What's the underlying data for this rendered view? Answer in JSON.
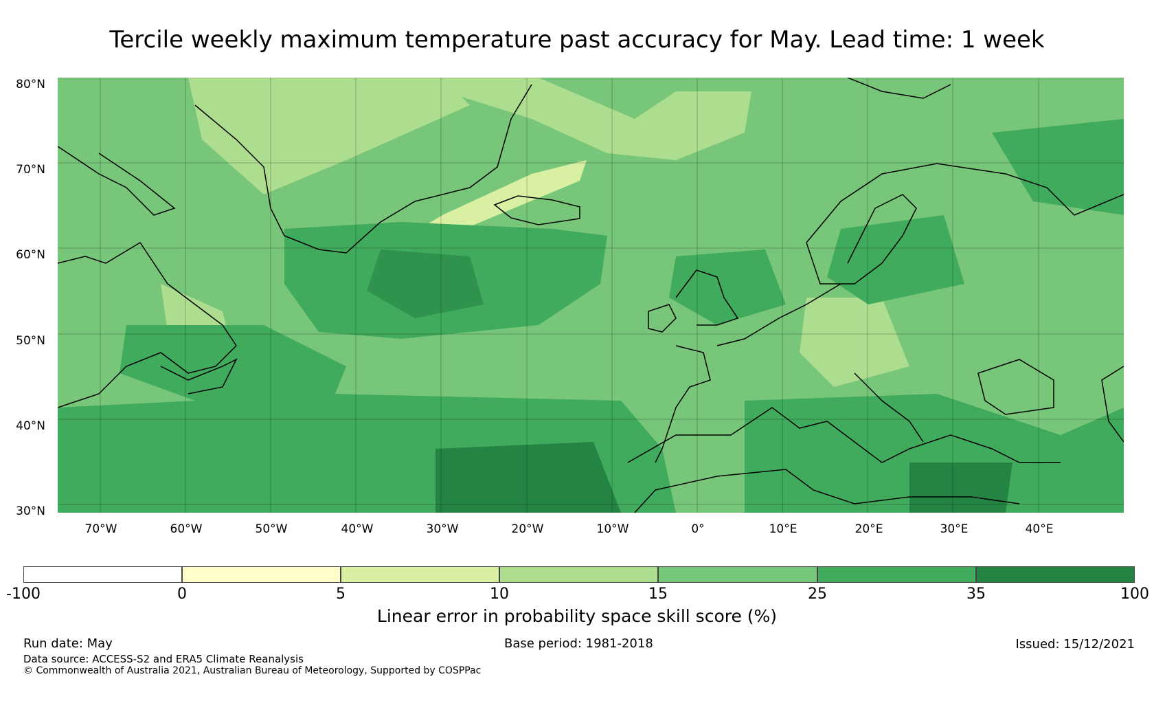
{
  "title": "Tercile weekly maximum temperature past accuracy for May. Lead time: 1 week",
  "map": {
    "region": "North Atlantic and Europe",
    "lat_labels": [
      "80°N",
      "70°N",
      "60°N",
      "50°N",
      "40°N",
      "30°N"
    ],
    "lon_labels": [
      "70°W",
      "60°W",
      "50°W",
      "40°W",
      "30°W",
      "20°W",
      "10°W",
      "0°",
      "10°E",
      "20°E",
      "30°E",
      "40°E"
    ],
    "lat_range": [
      30,
      81
    ],
    "lon_range": [
      -75,
      50
    ],
    "gridlines": true
  },
  "colorbar": {
    "label": "Linear error in probability space skill score (%)",
    "ticks": [
      "-100",
      "0",
      "5",
      "10",
      "15",
      "25",
      "35",
      "100"
    ],
    "colors": [
      "#ffffff",
      "#ffffcc",
      "#d9f0a3",
      "#addd8e",
      "#78c679",
      "#41ab5d",
      "#238443"
    ]
  },
  "footer": {
    "run_date": "Run date: May",
    "base_period": "Base period: 1981-2018",
    "issued": "Issued: 15/12/2021",
    "data_source": "Data source: ACCESS-S2 and ERA5 Climate Reanalysis",
    "copyright": "© Commonwealth of Australia 2021, Australian Bureau of Meteorology, Supported by COSPPac"
  }
}
